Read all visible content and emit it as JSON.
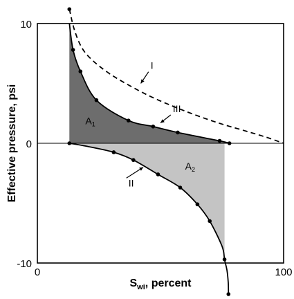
{
  "chart_data": {
    "type": "line",
    "title": "",
    "xlabel_main": "S",
    "xlabel_sub": "wi",
    "xlabel_rest": ", percent",
    "ylabel": "Effective pressure, psi",
    "xlim": [
      0,
      100
    ],
    "ylim": [
      -10,
      10
    ],
    "x_tick_labels": [
      "0",
      "100"
    ],
    "y_tick_labels": [
      "10",
      "0",
      "-10"
    ],
    "grid": false,
    "series": [
      {
        "label": "I",
        "style": "dashed",
        "points": [
          [
            13.0,
            11.2
          ],
          [
            15,
            9.5
          ],
          [
            18,
            8.0
          ],
          [
            22,
            7.0
          ],
          [
            28,
            6.0
          ],
          [
            35,
            5.1
          ],
          [
            45,
            4.0
          ],
          [
            55,
            3.1
          ],
          [
            65,
            2.3
          ],
          [
            75,
            1.6
          ],
          [
            85,
            1.0
          ],
          [
            93,
            0.5
          ],
          [
            100,
            0
          ]
        ]
      },
      {
        "label": "III",
        "style": "solid",
        "points": [
          [
            13.0,
            10
          ],
          [
            14.5,
            7.8
          ],
          [
            17.5,
            6.0
          ],
          [
            24,
            3.6
          ],
          [
            37,
            1.9
          ],
          [
            47,
            1.4
          ],
          [
            57,
            0.9
          ],
          [
            74,
            0.2
          ],
          [
            78,
            0
          ]
        ],
        "markers": [
          [
            14.5,
            7.8
          ],
          [
            17.5,
            6.0
          ],
          [
            24,
            3.6
          ],
          [
            37,
            1.9
          ],
          [
            47,
            1.4
          ],
          [
            57,
            0.9
          ],
          [
            74,
            0.2
          ],
          [
            78,
            0
          ]
        ]
      },
      {
        "label": "II",
        "style": "solid",
        "points": [
          [
            13.0,
            0
          ],
          [
            20,
            -0.25
          ],
          [
            31,
            -0.75
          ],
          [
            39,
            -1.4
          ],
          [
            49,
            -2.6
          ],
          [
            58,
            -3.7
          ],
          [
            65,
            -5.1
          ],
          [
            70,
            -6.5
          ],
          [
            75,
            -8.6
          ],
          [
            76,
            -9.7
          ],
          [
            77,
            -10.6
          ],
          [
            77.5,
            -11.6
          ],
          [
            77.6,
            -12.6
          ]
        ],
        "markers": [
          [
            13.0,
            0
          ],
          [
            31,
            -0.75
          ],
          [
            39,
            -1.4
          ],
          [
            49,
            -2.6
          ],
          [
            58,
            -3.7
          ],
          [
            65,
            -5.1
          ],
          [
            70,
            -6.5
          ],
          [
            76,
            -9.7
          ],
          [
            77.6,
            -12.6
          ]
        ]
      }
    ],
    "areas": [
      {
        "label_main": "A",
        "label_sub": "1",
        "color": "#6d6d6d",
        "between": "III above 0, x 13-78"
      },
      {
        "label_main": "A",
        "label_sub": "2",
        "color": "#c4c4c4",
        "between": "II below 0, x 13-76"
      }
    ],
    "extra_points": [
      [
        13.0,
        11.2
      ]
    ],
    "annotations": [
      {
        "text": "I",
        "at": [
          46,
          6.2
        ],
        "arrow_to": [
          42,
          5.0
        ]
      },
      {
        "text": "III",
        "at": [
          55,
          2.6
        ],
        "arrow_to": [
          50,
          1.7
        ]
      },
      {
        "text": "II",
        "at": [
          37,
          -3.6
        ],
        "arrow_to": [
          43,
          -2.0
        ]
      }
    ]
  }
}
